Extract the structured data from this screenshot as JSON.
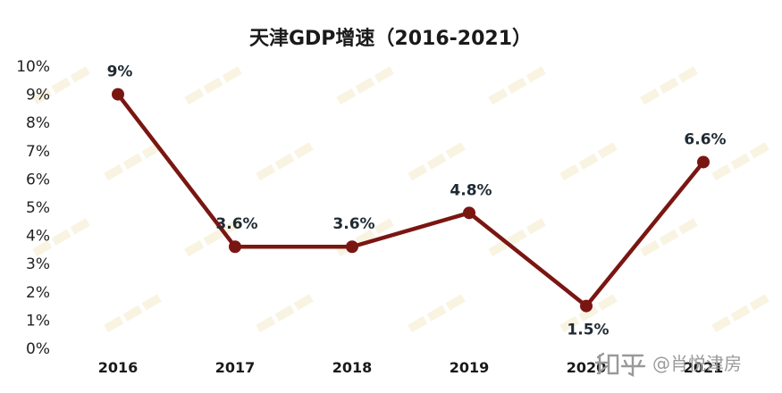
{
  "chart_data": {
    "type": "line",
    "title": "天津GDP增速（2016-2021）",
    "categories": [
      "2016",
      "2017",
      "2018",
      "2019",
      "2020",
      "2021"
    ],
    "values": [
      9,
      3.6,
      3.6,
      4.8,
      1.5,
      6.6
    ],
    "data_labels": [
      "9%",
      "3.6%",
      "3.6%",
      "4.8%",
      "1.5%",
      "6.6%"
    ],
    "y_ticks": [
      "0%",
      "1%",
      "2%",
      "3%",
      "4%",
      "5%",
      "6%",
      "7%",
      "8%",
      "9%",
      "10%"
    ],
    "ylim": [
      0,
      10
    ],
    "grid": false,
    "legend": "none",
    "series_color": "#7a1612"
  },
  "watermark": {
    "text": "@肖悦津房",
    "icon": "zhihu-logo-icon"
  }
}
